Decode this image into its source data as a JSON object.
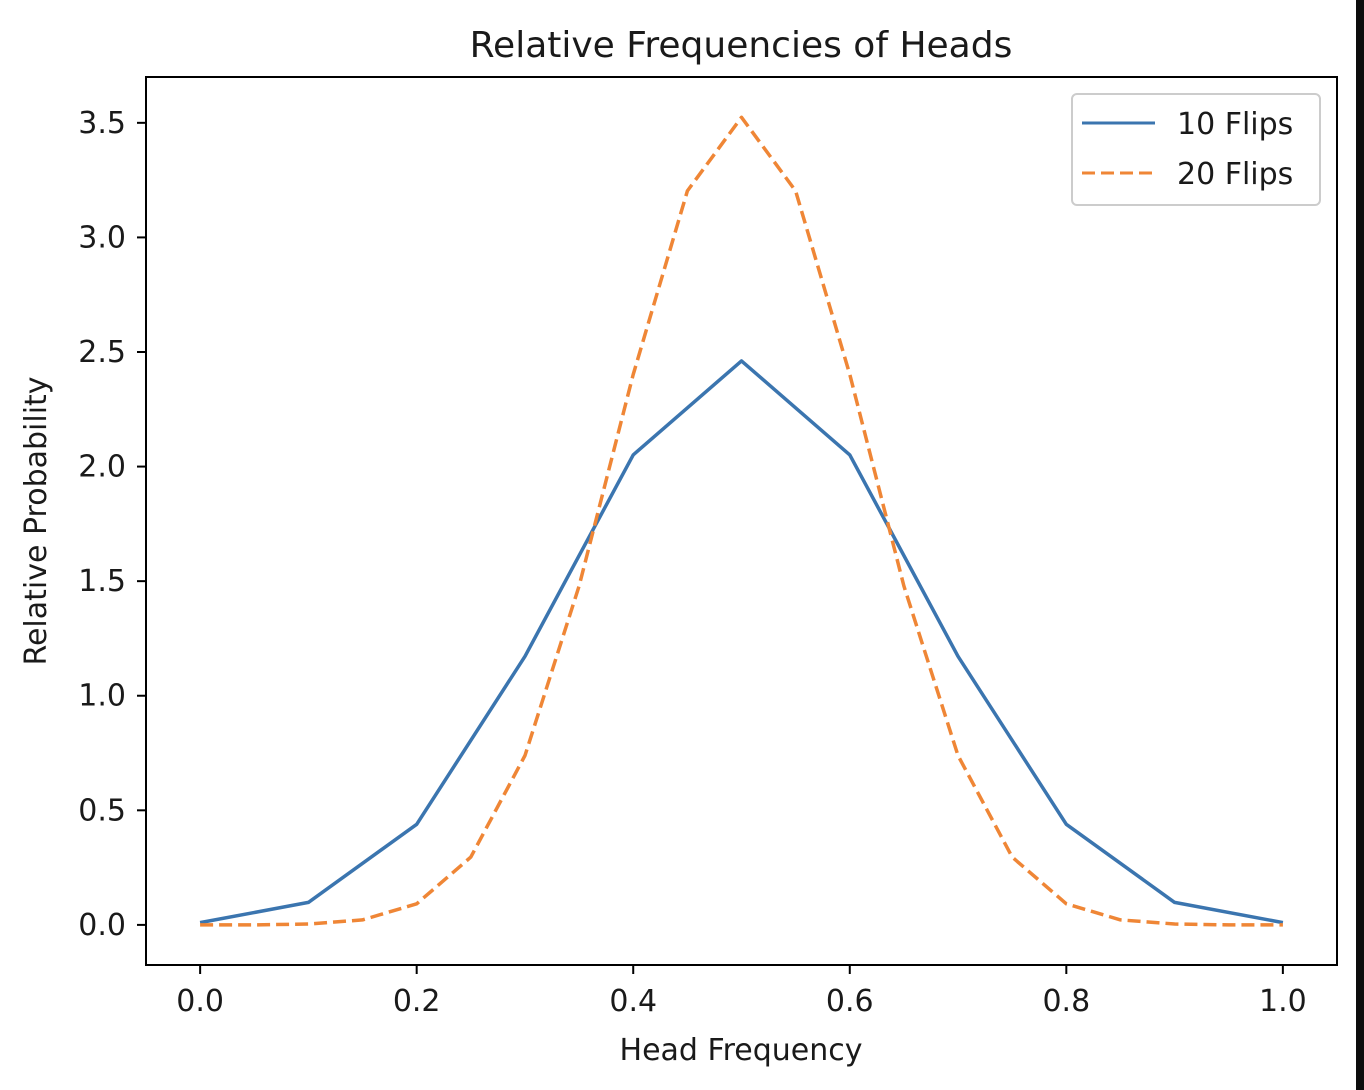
{
  "chart_data": {
    "type": "line",
    "title": "Relative Frequencies of Heads",
    "xlabel": "Head Frequency",
    "ylabel": "Relative Probability",
    "xlim": [
      -0.05,
      1.05
    ],
    "ylim": [
      -0.175,
      3.7
    ],
    "xticks": [
      0.0,
      0.2,
      0.4,
      0.6,
      0.8,
      1.0
    ],
    "xtick_labels": [
      "0.0",
      "0.2",
      "0.4",
      "0.6",
      "0.8",
      "1.0"
    ],
    "yticks": [
      0.0,
      0.5,
      1.0,
      1.5,
      2.0,
      2.5,
      3.0,
      3.5
    ],
    "ytick_labels": [
      "0.0",
      "0.5",
      "1.0",
      "1.5",
      "2.0",
      "2.5",
      "3.0",
      "3.5"
    ],
    "grid": false,
    "legend_position": "top-right",
    "series": [
      {
        "name": "10 Flips",
        "color": "#3b75af",
        "linestyle": "solid",
        "x": [
          0.0,
          0.1,
          0.2,
          0.3,
          0.4,
          0.5,
          0.6,
          0.7,
          0.8,
          0.9,
          1.0
        ],
        "y": [
          0.01,
          0.098,
          0.439,
          1.172,
          2.051,
          2.461,
          2.051,
          1.172,
          0.439,
          0.098,
          0.01
        ]
      },
      {
        "name": "20 Flips",
        "color": "#ef8636",
        "linestyle": "dashed",
        "x": [
          0.0,
          0.05,
          0.1,
          0.15,
          0.2,
          0.25,
          0.3,
          0.35,
          0.4,
          0.45,
          0.5,
          0.55,
          0.6,
          0.65,
          0.7,
          0.75,
          0.8,
          0.85,
          0.9,
          0.95,
          1.0
        ],
        "y": [
          0.0,
          0.0,
          0.004,
          0.022,
          0.092,
          0.296,
          0.739,
          1.479,
          2.402,
          3.203,
          3.524,
          3.203,
          2.402,
          1.479,
          0.739,
          0.296,
          0.092,
          0.022,
          0.004,
          0.0,
          0.0
        ]
      }
    ]
  }
}
